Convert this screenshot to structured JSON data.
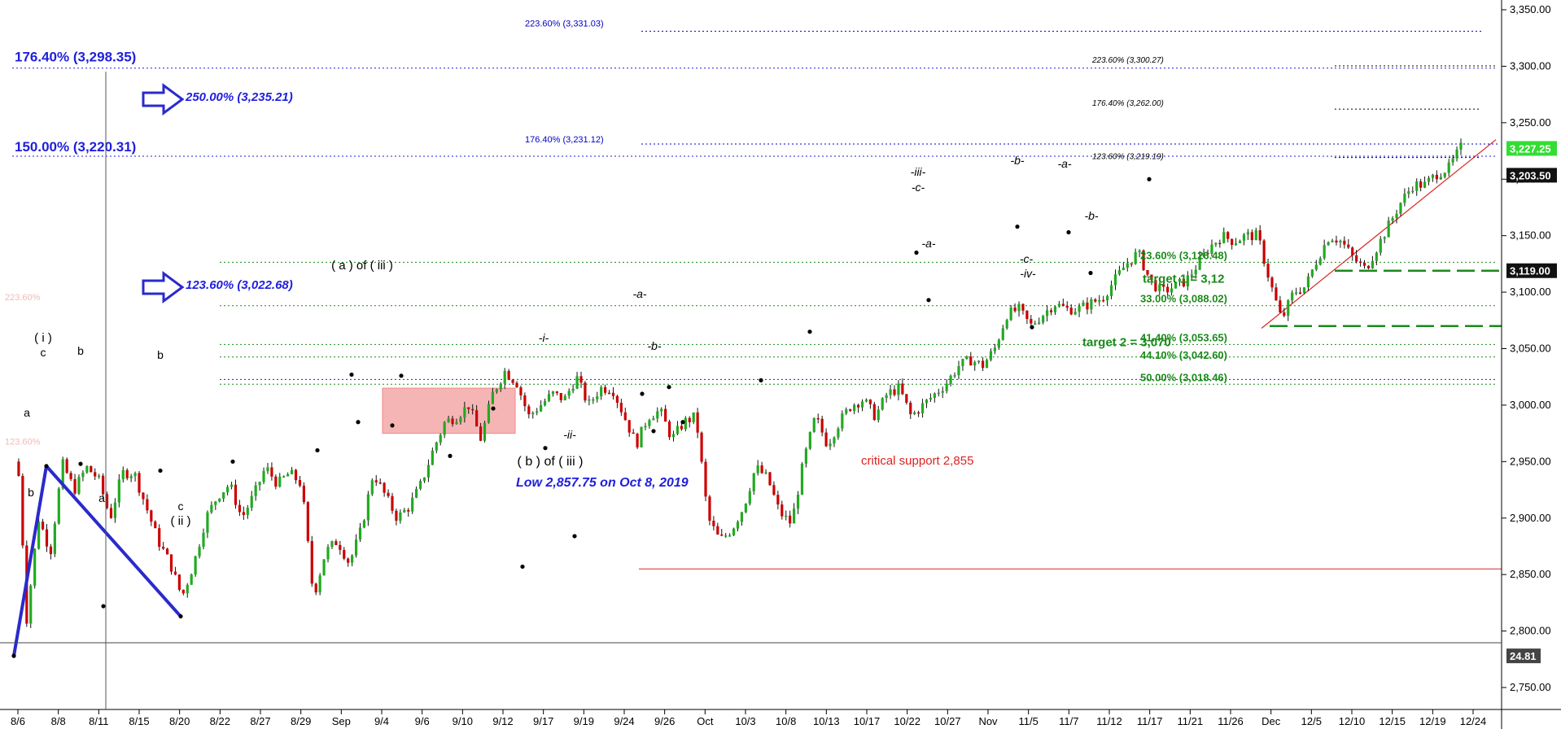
{
  "chart_data": {
    "type": "candlestick",
    "ylim": [
      2710,
      3360
    ],
    "y_ticks": [
      2750,
      2800,
      2850,
      2900,
      2950,
      3000,
      3050,
      3100,
      3150,
      3200,
      3250,
      3300,
      3350
    ],
    "y_tick_labels": [
      "2,750.00",
      "2,800.00",
      "2,850.00",
      "2,900.00",
      "2,950.00",
      "3,000.00",
      "3,050.00",
      "3,100.00",
      "3,150.00",
      "3,200.00",
      "3,250.00",
      "3,300.00",
      "3,350.00"
    ],
    "x_ticks": [
      "8/6",
      "8/8",
      "8/11",
      "8/15",
      "8/20",
      "8/22",
      "8/27",
      "8/29",
      "Sep",
      "9/4",
      "9/6",
      "9/10",
      "9/12",
      "9/17",
      "9/19",
      "9/24",
      "9/26",
      "Oct",
      "10/3",
      "10/8",
      "10/13",
      "10/17",
      "10/22",
      "10/27",
      "Nov",
      "11/5",
      "11/7",
      "11/12",
      "11/17",
      "11/21",
      "11/26",
      "Dec",
      "12/5",
      "12/10",
      "12/15",
      "12/19",
      "12/24"
    ],
    "price_path": [
      [
        0,
        2950
      ],
      [
        0.4,
        2935
      ],
      [
        1,
        2810
      ],
      [
        2,
        2900
      ],
      [
        3,
        2870
      ],
      [
        4,
        2948
      ],
      [
        5,
        2925
      ],
      [
        6,
        2945
      ],
      [
        7,
        2935
      ],
      [
        8,
        2900
      ],
      [
        9,
        2940
      ],
      [
        10,
        2940
      ],
      [
        11,
        2910
      ],
      [
        12,
        2880
      ],
      [
        13,
        2860
      ],
      [
        14,
        2830
      ],
      [
        15,
        2860
      ],
      [
        16,
        2900
      ],
      [
        17,
        2920
      ],
      [
        18,
        2930
      ],
      [
        19,
        2900
      ],
      [
        20,
        2920
      ],
      [
        21,
        2945
      ],
      [
        22,
        2930
      ],
      [
        23,
        2940
      ],
      [
        24,
        2930
      ],
      [
        25,
        2830
      ],
      [
        26,
        2870
      ],
      [
        27,
        2880
      ],
      [
        28,
        2860
      ],
      [
        29,
        2890
      ],
      [
        30,
        2940
      ],
      [
        31,
        2920
      ],
      [
        32,
        2900
      ],
      [
        33,
        2910
      ],
      [
        34,
        2930
      ],
      [
        35,
        2960
      ],
      [
        36,
        2985
      ],
      [
        37,
        2990
      ],
      [
        38,
        3000
      ],
      [
        39,
        2970
      ],
      [
        40,
        3010
      ],
      [
        41,
        3030
      ],
      [
        42,
        3020
      ],
      [
        43,
        2990
      ],
      [
        44,
        3000
      ],
      [
        45,
        3010
      ],
      [
        46,
        3005
      ],
      [
        47,
        3025
      ],
      [
        48,
        3000
      ],
      [
        49,
        3015
      ],
      [
        50,
        3015
      ],
      [
        51,
        2990
      ],
      [
        52,
        2965
      ],
      [
        53,
        2990
      ],
      [
        54,
        2995
      ],
      [
        55,
        2970
      ],
      [
        56,
        2985
      ],
      [
        57,
        2990
      ],
      [
        58,
        2900
      ],
      [
        59,
        2880
      ],
      [
        60,
        2890
      ],
      [
        61,
        2910
      ],
      [
        62,
        2945
      ],
      [
        63,
        2935
      ],
      [
        64,
        2905
      ],
      [
        65,
        2895
      ],
      [
        66,
        2950
      ],
      [
        67,
        2990
      ],
      [
        68,
        2965
      ],
      [
        69,
        2985
      ],
      [
        70,
        3000
      ],
      [
        71,
        3005
      ],
      [
        72,
        2990
      ],
      [
        73,
        3010
      ],
      [
        74,
        3015
      ],
      [
        75,
        2990
      ],
      [
        76,
        3000
      ],
      [
        77,
        3010
      ],
      [
        78,
        3020
      ],
      [
        79,
        3035
      ],
      [
        80,
        3040
      ],
      [
        81,
        3035
      ],
      [
        82,
        3050
      ],
      [
        83,
        3080
      ],
      [
        84,
        3085
      ],
      [
        85,
        3070
      ],
      [
        86,
        3080
      ],
      [
        87,
        3090
      ],
      [
        88,
        3085
      ],
      [
        89,
        3085
      ],
      [
        90,
        3090
      ],
      [
        91,
        3095
      ],
      [
        92,
        3110
      ],
      [
        93,
        3125
      ],
      [
        94,
        3135
      ],
      [
        95,
        3110
      ],
      [
        96,
        3100
      ],
      [
        97,
        3105
      ],
      [
        98,
        3110
      ],
      [
        99,
        3125
      ],
      [
        100,
        3140
      ],
      [
        101,
        3150
      ],
      [
        102,
        3145
      ],
      [
        103,
        3150
      ],
      [
        104,
        3150
      ],
      [
        105,
        3110
      ],
      [
        106,
        3075
      ],
      [
        107,
        3100
      ],
      [
        108,
        3105
      ],
      [
        109,
        3130
      ],
      [
        110,
        3150
      ],
      [
        111,
        3145
      ],
      [
        112,
        3130
      ],
      [
        113,
        3120
      ],
      [
        114,
        3140
      ],
      [
        115,
        3160
      ],
      [
        116,
        3180
      ],
      [
        117,
        3195
      ],
      [
        118,
        3195
      ],
      [
        119,
        3205
      ],
      [
        120,
        3210
      ],
      [
        121,
        3228
      ]
    ],
    "last_price": "3,227.25",
    "price_labels": [
      "3,227.25",
      "3,203.50",
      "3,119.00",
      "24.81"
    ],
    "fib_levels": [
      {
        "label": "223.60% (3,331.03)",
        "value": 3331.03,
        "color": "#0000cc"
      },
      {
        "label": "176.40% (3,298.35)",
        "value": 3298.35,
        "color": "#1f1fdd"
      },
      {
        "label": "223.60% (3,300.27)",
        "value": 3300.27,
        "color": "#000000"
      },
      {
        "label": "176.40% (3,262.00)",
        "value": 3262.0,
        "color": "#000000"
      },
      {
        "label": "250.00% (3,235.21)",
        "value": 3235.21,
        "color": "#1f1fdd"
      },
      {
        "label": "176.40% (3,231.12)",
        "value": 3231.12,
        "color": "#0000cc"
      },
      {
        "label": "150.00% (3,220.31)",
        "value": 3220.31,
        "color": "#1f1fdd"
      },
      {
        "label": "123.60% (3,219.19)",
        "value": 3219.19,
        "color": "#000000"
      },
      {
        "label": "23.60% (3,126.48)",
        "value": 3126.48,
        "color": "#1a8a1a"
      },
      {
        "label": "33.00% (3,088.02)",
        "value": 3088.02,
        "color": "#1a8a1a"
      },
      {
        "label": "41.40% (3,053.65)",
        "value": 3053.65,
        "color": "#1a8a1a"
      },
      {
        "label": "44.10% (3,042.60)",
        "value": 3042.6,
        "color": "#1a8a1a"
      },
      {
        "label": "50.00% (3,018.46)",
        "value": 3018.46,
        "color": "#1a8a1a"
      },
      {
        "label": "123.60% (3,022.68)",
        "value": 3022.68,
        "color": "#1f1fdd"
      }
    ],
    "targets": [
      {
        "label": "target 1 = 3,12",
        "value": 3119
      },
      {
        "label": "target 2 = 3,070",
        "value": 3070
      }
    ],
    "support": {
      "label": "critical support 2,855",
      "value": 2855
    },
    "low_note": "Low 2,857.75 on Oct 8, 2019",
    "faded_labels": [
      "223.60%",
      "123.60%"
    ],
    "wave_labels": [
      "( i )",
      "c",
      "a",
      "b",
      "a",
      "b",
      "c",
      "( ii )",
      "b",
      "( a ) of ( iii )",
      "( b ) of ( iii )",
      "-i-",
      "-ii-",
      "-a-",
      "-b-",
      "-iii-",
      "-c-",
      "-a-",
      "-b-",
      "-c-",
      "-iv-",
      "-a-",
      "-b-"
    ]
  },
  "colors": {
    "up": "#22aa22",
    "down": "#cc0000",
    "wick": "#111111",
    "blue": "#1f1fdd",
    "green": "#1a8a1a",
    "red": "#dd2222",
    "box": "#f5a8a8"
  }
}
